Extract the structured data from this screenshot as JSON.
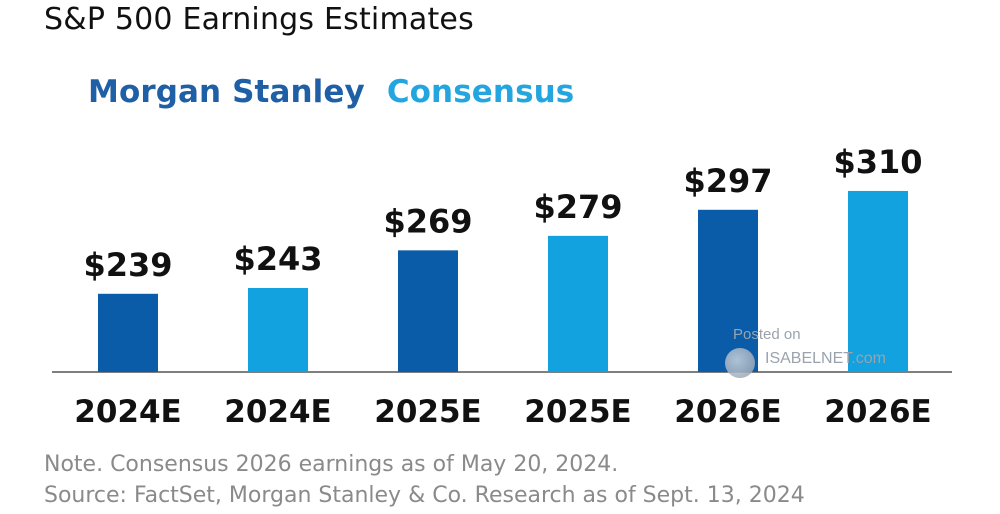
{
  "title": "S&P 500 Earnings Estimates",
  "legend": {
    "series_a": "Morgan Stanley",
    "series_b": "Consensus"
  },
  "colors": {
    "morgan_stanley": "#0a5ca8",
    "consensus": "#12a2df",
    "axis": "#555555",
    "label": "#111111"
  },
  "chart_data": {
    "type": "bar",
    "categories": [
      "2024E",
      "2024E",
      "2025E",
      "2025E",
      "2026E",
      "2026E"
    ],
    "series": [
      {
        "name": "Morgan Stanley",
        "values": [
          239,
          null,
          269,
          null,
          297,
          null
        ]
      },
      {
        "name": "Consensus",
        "values": [
          null,
          243,
          null,
          279,
          null,
          310
        ]
      }
    ],
    "data_labels": [
      "$239",
      "$243",
      "$269",
      "$279",
      "$297",
      "$310"
    ],
    "values": [
      239,
      243,
      269,
      279,
      297,
      310
    ],
    "bar_series": [
      "Morgan Stanley",
      "Consensus",
      "Morgan Stanley",
      "Consensus",
      "Morgan Stanley",
      "Consensus"
    ],
    "ylim": [
      185,
      330
    ],
    "grid": false,
    "legend_position": "top-left"
  },
  "notes": {
    "note": "Note. Consensus 2026 earnings as of May 20, 2024.",
    "source": "Source: FactSet, Morgan Stanley & Co. Research as of Sept. 13, 2024"
  },
  "watermark": {
    "line1": "Posted on",
    "line2": "ISABELNET.com"
  }
}
